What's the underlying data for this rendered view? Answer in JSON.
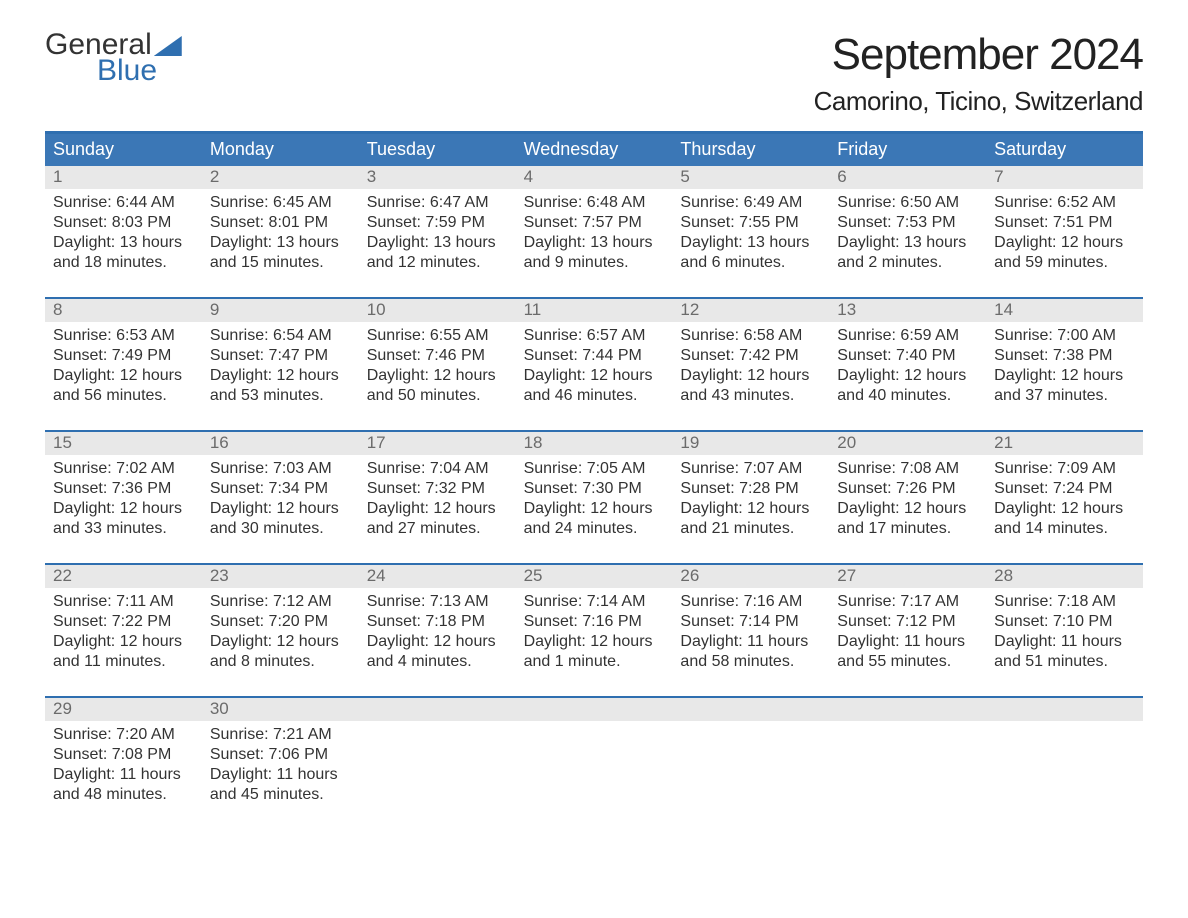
{
  "brand": {
    "line1": "General",
    "line2": "Blue"
  },
  "title": "September 2024",
  "location": "Camorino, Ticino, Switzerland",
  "colors": {
    "header_bg": "#3b77b6",
    "header_border": "#2f6fb0",
    "daynum_bg": "#e8e8e8",
    "daynum_text": "#6b6b6b",
    "body_text": "#333333",
    "brand_blue": "#2f6fb0",
    "page_bg": "#ffffff"
  },
  "weekdays": [
    "Sunday",
    "Monday",
    "Tuesday",
    "Wednesday",
    "Thursday",
    "Friday",
    "Saturday"
  ],
  "labels": {
    "sunrise": "Sunrise: ",
    "sunset": "Sunset: ",
    "daylight": "Daylight: "
  },
  "weeks": [
    [
      {
        "n": "1",
        "sr": "6:44 AM",
        "ss": "8:03 PM",
        "dl1": "13 hours",
        "dl2": "and 18 minutes."
      },
      {
        "n": "2",
        "sr": "6:45 AM",
        "ss": "8:01 PM",
        "dl1": "13 hours",
        "dl2": "and 15 minutes."
      },
      {
        "n": "3",
        "sr": "6:47 AM",
        "ss": "7:59 PM",
        "dl1": "13 hours",
        "dl2": "and 12 minutes."
      },
      {
        "n": "4",
        "sr": "6:48 AM",
        "ss": "7:57 PM",
        "dl1": "13 hours",
        "dl2": "and 9 minutes."
      },
      {
        "n": "5",
        "sr": "6:49 AM",
        "ss": "7:55 PM",
        "dl1": "13 hours",
        "dl2": "and 6 minutes."
      },
      {
        "n": "6",
        "sr": "6:50 AM",
        "ss": "7:53 PM",
        "dl1": "13 hours",
        "dl2": "and 2 minutes."
      },
      {
        "n": "7",
        "sr": "6:52 AM",
        "ss": "7:51 PM",
        "dl1": "12 hours",
        "dl2": "and 59 minutes."
      }
    ],
    [
      {
        "n": "8",
        "sr": "6:53 AM",
        "ss": "7:49 PM",
        "dl1": "12 hours",
        "dl2": "and 56 minutes."
      },
      {
        "n": "9",
        "sr": "6:54 AM",
        "ss": "7:47 PM",
        "dl1": "12 hours",
        "dl2": "and 53 minutes."
      },
      {
        "n": "10",
        "sr": "6:55 AM",
        "ss": "7:46 PM",
        "dl1": "12 hours",
        "dl2": "and 50 minutes."
      },
      {
        "n": "11",
        "sr": "6:57 AM",
        "ss": "7:44 PM",
        "dl1": "12 hours",
        "dl2": "and 46 minutes."
      },
      {
        "n": "12",
        "sr": "6:58 AM",
        "ss": "7:42 PM",
        "dl1": "12 hours",
        "dl2": "and 43 minutes."
      },
      {
        "n": "13",
        "sr": "6:59 AM",
        "ss": "7:40 PM",
        "dl1": "12 hours",
        "dl2": "and 40 minutes."
      },
      {
        "n": "14",
        "sr": "7:00 AM",
        "ss": "7:38 PM",
        "dl1": "12 hours",
        "dl2": "and 37 minutes."
      }
    ],
    [
      {
        "n": "15",
        "sr": "7:02 AM",
        "ss": "7:36 PM",
        "dl1": "12 hours",
        "dl2": "and 33 minutes."
      },
      {
        "n": "16",
        "sr": "7:03 AM",
        "ss": "7:34 PM",
        "dl1": "12 hours",
        "dl2": "and 30 minutes."
      },
      {
        "n": "17",
        "sr": "7:04 AM",
        "ss": "7:32 PM",
        "dl1": "12 hours",
        "dl2": "and 27 minutes."
      },
      {
        "n": "18",
        "sr": "7:05 AM",
        "ss": "7:30 PM",
        "dl1": "12 hours",
        "dl2": "and 24 minutes."
      },
      {
        "n": "19",
        "sr": "7:07 AM",
        "ss": "7:28 PM",
        "dl1": "12 hours",
        "dl2": "and 21 minutes."
      },
      {
        "n": "20",
        "sr": "7:08 AM",
        "ss": "7:26 PM",
        "dl1": "12 hours",
        "dl2": "and 17 minutes."
      },
      {
        "n": "21",
        "sr": "7:09 AM",
        "ss": "7:24 PM",
        "dl1": "12 hours",
        "dl2": "and 14 minutes."
      }
    ],
    [
      {
        "n": "22",
        "sr": "7:11 AM",
        "ss": "7:22 PM",
        "dl1": "12 hours",
        "dl2": "and 11 minutes."
      },
      {
        "n": "23",
        "sr": "7:12 AM",
        "ss": "7:20 PM",
        "dl1": "12 hours",
        "dl2": "and 8 minutes."
      },
      {
        "n": "24",
        "sr": "7:13 AM",
        "ss": "7:18 PM",
        "dl1": "12 hours",
        "dl2": "and 4 minutes."
      },
      {
        "n": "25",
        "sr": "7:14 AM",
        "ss": "7:16 PM",
        "dl1": "12 hours",
        "dl2": "and 1 minute."
      },
      {
        "n": "26",
        "sr": "7:16 AM",
        "ss": "7:14 PM",
        "dl1": "11 hours",
        "dl2": "and 58 minutes."
      },
      {
        "n": "27",
        "sr": "7:17 AM",
        "ss": "7:12 PM",
        "dl1": "11 hours",
        "dl2": "and 55 minutes."
      },
      {
        "n": "28",
        "sr": "7:18 AM",
        "ss": "7:10 PM",
        "dl1": "11 hours",
        "dl2": "and 51 minutes."
      }
    ],
    [
      {
        "n": "29",
        "sr": "7:20 AM",
        "ss": "7:08 PM",
        "dl1": "11 hours",
        "dl2": "and 48 minutes."
      },
      {
        "n": "30",
        "sr": "7:21 AM",
        "ss": "7:06 PM",
        "dl1": "11 hours",
        "dl2": "and 45 minutes."
      },
      {
        "empty": true
      },
      {
        "empty": true
      },
      {
        "empty": true
      },
      {
        "empty": true
      },
      {
        "empty": true
      }
    ]
  ]
}
